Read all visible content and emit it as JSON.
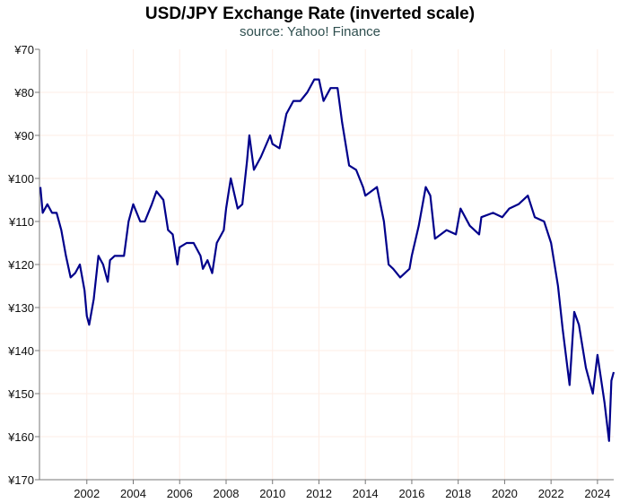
{
  "chart_data": {
    "type": "line",
    "title": "USD/JPY Exchange Rate (inverted scale)",
    "subtitle": "source: Yahoo! Finance",
    "xlabel": "",
    "ylabel": "",
    "xlim": [
      2000.0,
      2024.7
    ],
    "ylim": [
      70,
      170
    ],
    "y_inverted": true,
    "grid": true,
    "line_color": "#00008b",
    "grid_color": "#fdeee6",
    "y_ticks": [
      70,
      80,
      90,
      100,
      110,
      120,
      130,
      140,
      150,
      160,
      170
    ],
    "y_tick_labels": [
      "¥70",
      "¥80",
      "¥90",
      "¥100",
      "¥110",
      "¥120",
      "¥130",
      "¥140",
      "¥150",
      "¥160",
      "¥170"
    ],
    "x_ticks": [
      2002,
      2004,
      2006,
      2008,
      2010,
      2012,
      2014,
      2016,
      2018,
      2020,
      2022,
      2024
    ],
    "x_tick_labels": [
      "2002",
      "2004",
      "2006",
      "2008",
      "2010",
      "2012",
      "2014",
      "2016",
      "2018",
      "2020",
      "2022",
      "2024"
    ],
    "series": [
      {
        "x": [
          2000.0,
          2000.1,
          2000.3,
          2000.5,
          2000.7,
          2000.9,
          2001.1,
          2001.3,
          2001.5,
          2001.7,
          2001.9,
          2002.0,
          2002.1,
          2002.3,
          2002.5,
          2002.7,
          2002.9,
          2003.0,
          2003.2,
          2003.4,
          2003.6,
          2003.8,
          2004.0,
          2004.3,
          2004.5,
          2004.8,
          2005.0,
          2005.3,
          2005.5,
          2005.7,
          2005.9,
          2006.0,
          2006.3,
          2006.6,
          2006.9,
          2007.0,
          2007.2,
          2007.4,
          2007.6,
          2007.9,
          2008.0,
          2008.2,
          2008.5,
          2008.7,
          2008.9,
          2009.0,
          2009.2,
          2009.5,
          2009.9,
          2010.0,
          2010.3,
          2010.6,
          2010.9,
          2011.2,
          2011.5,
          2011.8,
          2012.0,
          2012.2,
          2012.5,
          2012.8,
          2013.0,
          2013.3,
          2013.6,
          2013.9,
          2014.0,
          2014.5,
          2014.8,
          2015.0,
          2015.2,
          2015.5,
          2015.9,
          2016.0,
          2016.3,
          2016.6,
          2016.8,
          2017.0,
          2017.5,
          2017.9,
          2018.1,
          2018.5,
          2018.9,
          2019.0,
          2019.5,
          2019.9,
          2020.2,
          2020.6,
          2021.0,
          2021.3,
          2021.7,
          2022.0,
          2022.3,
          2022.5,
          2022.8,
          2023.0,
          2023.2,
          2023.5,
          2023.8,
          2024.0,
          2024.3,
          2024.5,
          2024.6,
          2024.7
        ],
        "values": [
          102,
          108,
          106,
          108,
          108,
          112,
          118,
          123,
          122,
          120,
          126,
          132,
          134,
          128,
          118,
          120,
          124,
          119,
          118,
          118,
          118,
          110,
          106,
          110,
          110,
          106,
          103,
          105,
          112,
          113,
          120,
          116,
          115,
          115,
          118,
          121,
          119,
          122,
          115,
          112,
          107,
          100,
          107,
          106,
          96,
          90,
          98,
          95,
          90,
          92,
          93,
          85,
          82,
          82,
          80,
          77,
          77,
          82,
          79,
          79,
          87,
          97,
          98,
          102,
          104,
          102,
          110,
          120,
          121,
          123,
          121,
          118,
          111,
          102,
          104,
          114,
          112,
          113,
          107,
          111,
          113,
          109,
          108,
          109,
          107,
          106,
          104,
          109,
          110,
          115,
          125,
          135,
          148,
          131,
          134,
          144,
          150,
          141,
          152,
          161,
          147,
          145
        ]
      }
    ]
  }
}
